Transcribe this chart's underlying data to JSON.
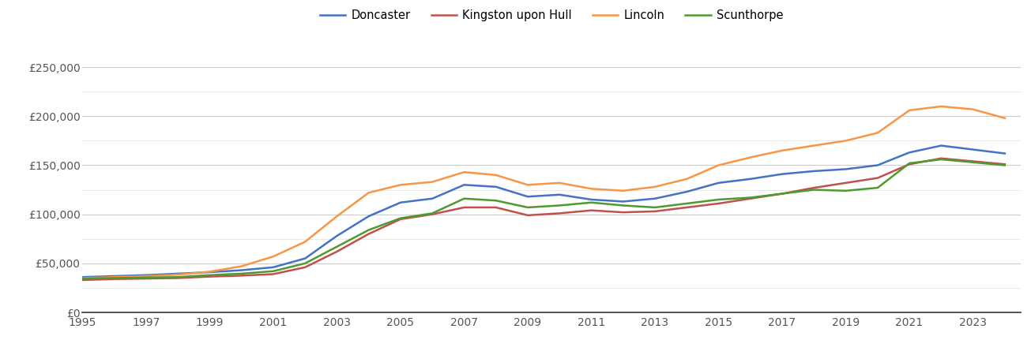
{
  "years": [
    1995,
    1996,
    1997,
    1998,
    1999,
    2000,
    2001,
    2002,
    2003,
    2004,
    2005,
    2006,
    2007,
    2008,
    2009,
    2010,
    2011,
    2012,
    2013,
    2014,
    2015,
    2016,
    2017,
    2018,
    2019,
    2020,
    2021,
    2022,
    2023,
    2024
  ],
  "doncaster": [
    36000,
    37000,
    38000,
    39500,
    41000,
    43000,
    46000,
    55000,
    78000,
    98000,
    112000,
    116000,
    130000,
    128000,
    118000,
    120000,
    115000,
    113000,
    116000,
    123000,
    132000,
    136000,
    141000,
    144000,
    146000,
    150000,
    163000,
    170000,
    166000,
    162000
  ],
  "kingston_upon_hull": [
    33000,
    34000,
    34500,
    35000,
    36500,
    37500,
    39000,
    46000,
    62000,
    80000,
    95000,
    100000,
    107000,
    107000,
    99000,
    101000,
    104000,
    102000,
    103000,
    107000,
    111000,
    116000,
    121000,
    127000,
    132000,
    137000,
    151000,
    157000,
    154000,
    151000
  ],
  "lincoln": [
    35000,
    36000,
    37000,
    38500,
    41500,
    47000,
    57000,
    72000,
    98000,
    122000,
    130000,
    133000,
    143000,
    140000,
    130000,
    132000,
    126000,
    124000,
    128000,
    136000,
    150000,
    158000,
    165000,
    170000,
    175000,
    183000,
    206000,
    210000,
    207000,
    198000
  ],
  "scunthorpe": [
    34500,
    35000,
    35500,
    36000,
    38000,
    39500,
    42000,
    50000,
    67000,
    84000,
    96000,
    101000,
    116000,
    114000,
    107000,
    109000,
    112000,
    109000,
    107000,
    111000,
    115000,
    117000,
    121000,
    125000,
    124000,
    127000,
    152000,
    156000,
    153000,
    150000
  ],
  "colors": {
    "doncaster": "#4472c4",
    "kingston_upon_hull": "#c0504d",
    "lincoln": "#f79646",
    "scunthorpe": "#4e9a2e"
  },
  "legend_labels": [
    "Doncaster",
    "Kingston upon Hull",
    "Lincoln",
    "Scunthorpe"
  ],
  "ylim": [
    0,
    275000
  ],
  "yticks_major": [
    0,
    50000,
    100000,
    150000,
    200000,
    250000
  ],
  "yticks_minor": [
    25000,
    75000,
    125000,
    175000,
    225000
  ],
  "background_color": "#ffffff",
  "grid_color_major": "#cccccc",
  "grid_color_minor": "#e5e5e5",
  "line_width": 1.8,
  "tick_label_color": "#555555",
  "tick_label_size": 10
}
